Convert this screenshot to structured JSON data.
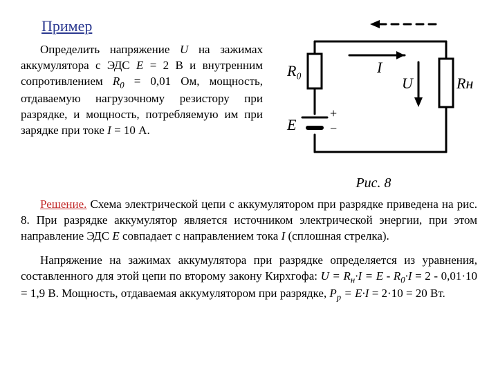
{
  "heading": "Пример",
  "problem_html": "<span class=\"indent\"></span>Определить напряжение <em class=\"var\">U</em> на зажимах аккумулятора с ЭДС <em class=\"var\">E</em> = 2 В и внутренним сопротивлением <em class=\"var\">R<sub>0</sub></em> = 0,01 Ом, мощность, отдаваемую нагрузочному резистору при разрядке, и мощность, потребляемую им при зарядке при токе <em class=\"var\">I</em> = 10 А.",
  "solution_intro_html": "<span class=\"indent\"></span><span class=\"solhead\">Решение.</span> Схема электрической цепи с аккумулятором при разрядке приведена на рис. 8. При разрядке аккумулятор является источником электрической энергии, при этом направление ЭДС <em class=\"var\">E</em> совпадает с направлением тока <em class=\"var\">I</em> (сплошная стрелка).",
  "solution_calc_html": "<span class=\"indent\"></span>Напряжение на зажимах аккумулятора при разрядке определяется из уравнения, составленного для этой цепи по второму закону Кирхгофа: <em class=\"var\">U = R<sub>н</sub>·I = E - R<sub>0</sub>·I</em> = 2 - 0,01·10 = 1,9 В. Мощность, отдаваемая аккумулятором при разрядке, <em class=\"var\">P<sub>р</sub> = E·I</em> = 2·10 = 20 Вт.",
  "figure": {
    "caption": "Рис. 8",
    "labels": {
      "R0": "R₀",
      "E": "E",
      "Eplus": "+",
      "Eminus": "−",
      "I": "I",
      "U": "U",
      "Rn": "Rн"
    },
    "colors": {
      "stroke": "#000000",
      "bg": "#ffffff"
    },
    "stroke_width": 3
  }
}
